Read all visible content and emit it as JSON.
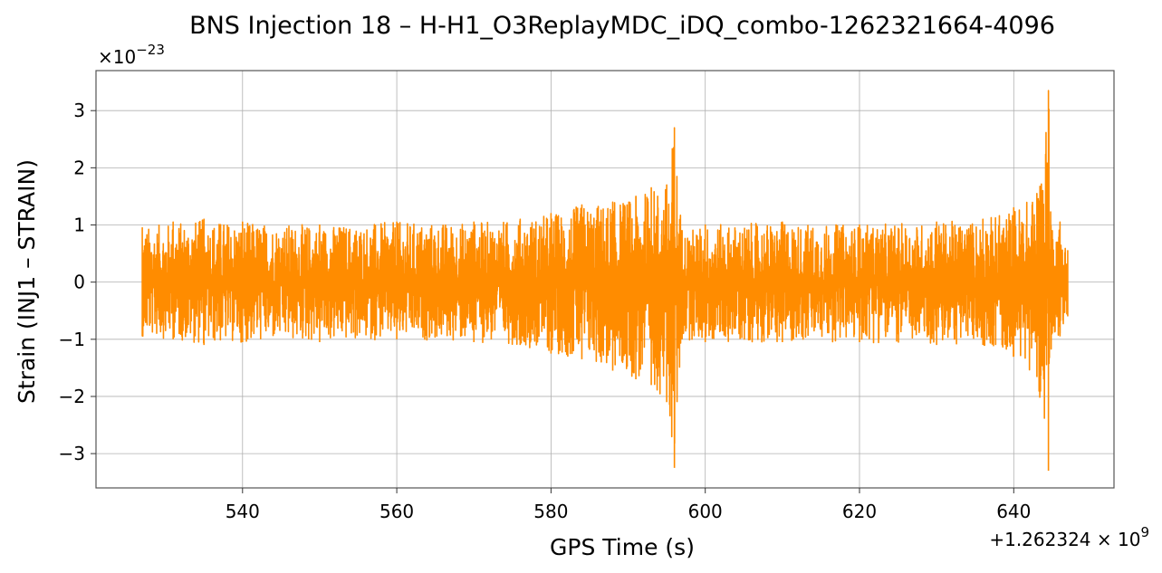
{
  "chart_data": {
    "type": "line",
    "title": "BNS Injection 18 – H-H1_O3ReplayMDC_iDQ_combo-1262321664-4096",
    "xlabel": "GPS Time (s)",
    "ylabel": "Strain (INJ1 – STRAIN)",
    "x_offset_label": "+1.262324 × 10",
    "x_offset_exponent": "9",
    "y_scale_label": "×10",
    "y_scale_exponent": "−23",
    "xlim": [
      521,
      653
    ],
    "ylim": [
      -3.6,
      3.7
    ],
    "x_ticks": [
      540,
      560,
      580,
      600,
      620,
      640
    ],
    "x_tick_labels": [
      "540",
      "560",
      "580",
      "600",
      "620",
      "640"
    ],
    "y_ticks": [
      -3,
      -2,
      -1,
      0,
      1,
      2,
      3
    ],
    "y_tick_labels": [
      "−3",
      "−2",
      "−1",
      "0",
      "1",
      "2",
      "3"
    ],
    "grid": true,
    "line_color": "#ff8c00",
    "series": [
      {
        "envelope": {
          "x": [
            527,
            531,
            535,
            540,
            550,
            560,
            570,
            576,
            580,
            584,
            588,
            591,
            593,
            595,
            596,
            597,
            600,
            610,
            620,
            630,
            636,
            640,
            643,
            644.5,
            645,
            646,
            647
          ],
          "upper": [
            0.95,
            1.05,
            1.1,
            1.05,
            1.0,
            1.05,
            1.05,
            1.1,
            1.2,
            1.35,
            1.4,
            1.5,
            1.65,
            1.7,
            2.7,
            0.9,
            1.0,
            1.05,
            1.0,
            1.05,
            1.1,
            1.3,
            1.55,
            3.35,
            0.9,
            1.05,
            0.55
          ],
          "lower": [
            -0.95,
            -1.0,
            -1.1,
            -1.05,
            -1.05,
            -1.0,
            -1.05,
            -1.1,
            -1.25,
            -1.35,
            -1.55,
            -1.7,
            -1.8,
            -2.1,
            -3.25,
            -1.0,
            -1.05,
            -1.05,
            -1.05,
            -1.1,
            -1.1,
            -1.3,
            -1.65,
            -3.3,
            -0.9,
            -0.95,
            -0.6
          ]
        }
      }
    ]
  }
}
